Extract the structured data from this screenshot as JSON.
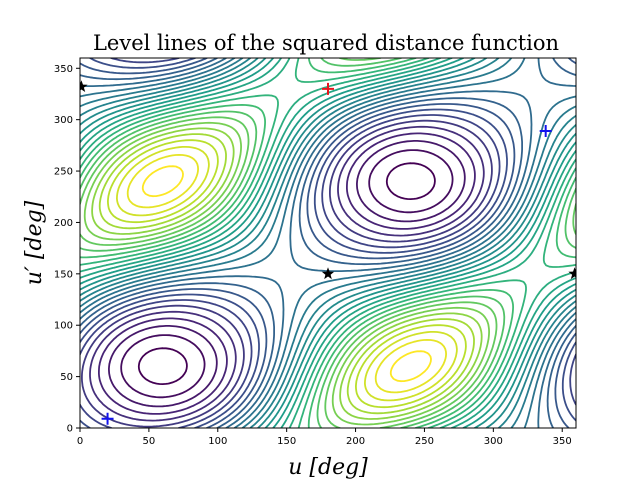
{
  "chart_data": {
    "type": "contour",
    "title": "Level lines of the squared distance function",
    "xlabel": "u [deg]",
    "ylabel": "u′ [deg]",
    "xlim": [
      0,
      360
    ],
    "ylim": [
      0,
      360
    ],
    "x_ticks": [
      0,
      50,
      100,
      150,
      200,
      250,
      300,
      350
    ],
    "y_ticks": [
      0,
      50,
      100,
      150,
      200,
      250,
      300,
      350
    ],
    "grid": false,
    "colormap": "viridis",
    "level_count": 30,
    "markers": [
      {
        "kind": "plus",
        "color": "#e8141c",
        "x": 180,
        "y": 330
      },
      {
        "kind": "plus",
        "color": "#1212ee",
        "x": 20,
        "y": 9
      },
      {
        "kind": "plus",
        "color": "#1212ee",
        "x": 338,
        "y": 289
      },
      {
        "kind": "star",
        "color": "#000000",
        "x": 180,
        "y": 150
      },
      {
        "kind": "star",
        "color": "#000000",
        "x": 359,
        "y": 150
      },
      {
        "kind": "star",
        "color": "#000000",
        "x": 1,
        "y": 332
      }
    ]
  }
}
